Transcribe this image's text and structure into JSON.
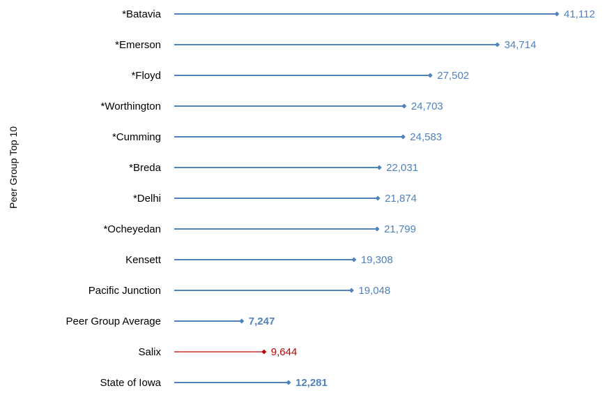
{
  "chart_data": {
    "type": "bar",
    "ylabel": "Peer Group Top 10",
    "xlim": [
      0,
      44000
    ],
    "grid": false,
    "legend": "none",
    "series_color": "#4F81BD",
    "highlight_color": "#C00000",
    "items": [
      {
        "category": "*Batavia",
        "value": 41112,
        "label": "41,112",
        "bold": false,
        "color": "#4F81BD"
      },
      {
        "category": "*Emerson",
        "value": 34714,
        "label": "34,714",
        "bold": false,
        "color": "#4F81BD"
      },
      {
        "category": "*Floyd",
        "value": 27502,
        "label": "27,502",
        "bold": false,
        "color": "#4F81BD"
      },
      {
        "category": "*Worthington",
        "value": 24703,
        "label": "24,703",
        "bold": false,
        "color": "#4F81BD"
      },
      {
        "category": "*Cumming",
        "value": 24583,
        "label": "24,583",
        "bold": false,
        "color": "#4F81BD"
      },
      {
        "category": "*Breda",
        "value": 22031,
        "label": "22,031",
        "bold": false,
        "color": "#4F81BD"
      },
      {
        "category": "*Delhi",
        "value": 21874,
        "label": "21,874",
        "bold": false,
        "color": "#4F81BD"
      },
      {
        "category": "*Ocheyedan",
        "value": 21799,
        "label": "21,799",
        "bold": false,
        "color": "#4F81BD"
      },
      {
        "category": "Kensett",
        "value": 19308,
        "label": "19,308",
        "bold": false,
        "color": "#4F81BD"
      },
      {
        "category": "Pacific Junction",
        "value": 19048,
        "label": "19,048",
        "bold": false,
        "color": "#4F81BD"
      },
      {
        "category": "Peer Group Average",
        "value": 7247,
        "label": "7,247",
        "bold": true,
        "color": "#4F81BD"
      },
      {
        "category": "Salix",
        "value": 9644,
        "label": "9,644",
        "bold": false,
        "color": "#C00000"
      },
      {
        "category": "State of Iowa",
        "value": 12281,
        "label": "12,281",
        "bold": true,
        "color": "#4F81BD"
      }
    ]
  }
}
